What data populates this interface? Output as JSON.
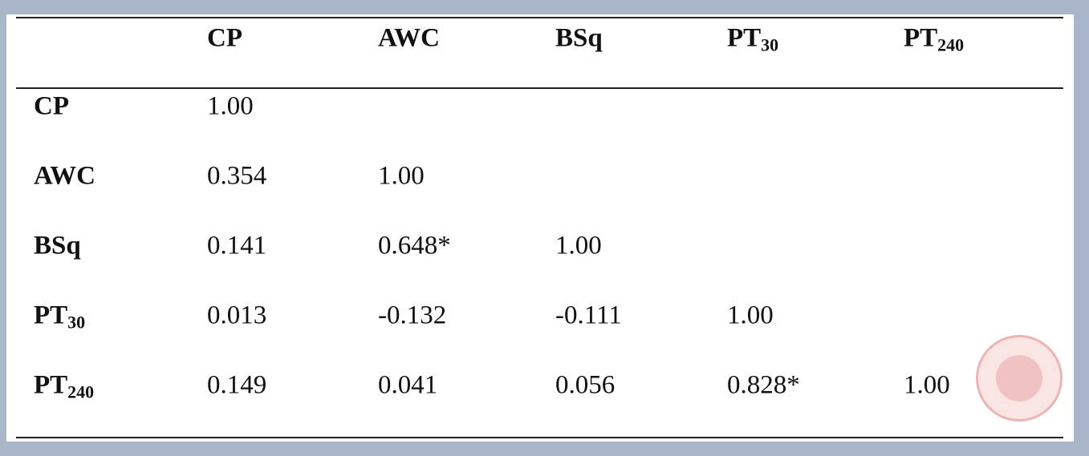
{
  "table": {
    "columns": [
      {
        "text": "CP"
      },
      {
        "text": "AWC"
      },
      {
        "text": "BSq"
      },
      {
        "text": "PT",
        "sub": "30"
      },
      {
        "text": "PT",
        "sub": "240"
      }
    ],
    "rows": [
      {
        "label": {
          "text": "CP"
        },
        "values": [
          "1.00"
        ]
      },
      {
        "label": {
          "text": "AWC"
        },
        "values": [
          "0.354",
          "1.00"
        ]
      },
      {
        "label": {
          "text": "BSq"
        },
        "values": [
          "0.141",
          "0.648*",
          "1.00"
        ]
      },
      {
        "label": {
          "text": "PT",
          "sub": "30"
        },
        "values": [
          "0.013",
          "-0.132",
          "-0.111",
          "1.00"
        ]
      },
      {
        "label": {
          "text": "PT",
          "sub": "240"
        },
        "values": [
          "0.149",
          "0.041",
          "0.056",
          "0.828*",
          "1.00"
        ]
      }
    ]
  }
}
